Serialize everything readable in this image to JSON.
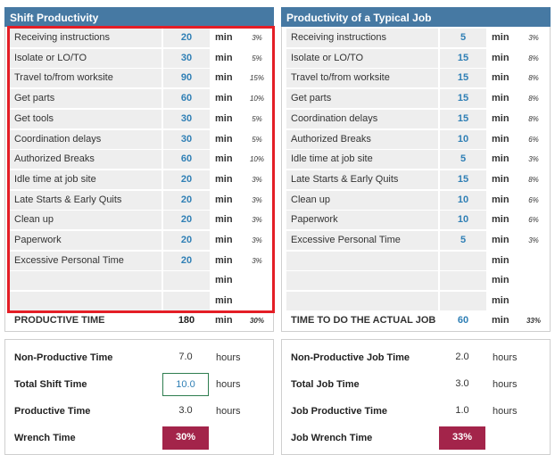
{
  "left_panel": {
    "title": "Shift Productivity",
    "rows": [
      {
        "label": "Receiving instructions",
        "value": "20",
        "unit": "min",
        "percent": "3%"
      },
      {
        "label": "Isolate or LO/TO",
        "value": "30",
        "unit": "min",
        "percent": "5%"
      },
      {
        "label": "Travel to/from worksite",
        "value": "90",
        "unit": "min",
        "percent": "15%"
      },
      {
        "label": "Get parts",
        "value": "60",
        "unit": "min",
        "percent": "10%"
      },
      {
        "label": "Get tools",
        "value": "30",
        "unit": "min",
        "percent": "5%"
      },
      {
        "label": "Coordination delays",
        "value": "30",
        "unit": "min",
        "percent": "5%"
      },
      {
        "label": "Authorized Breaks",
        "value": "60",
        "unit": "min",
        "percent": "10%"
      },
      {
        "label": "Idle time at job site",
        "value": "20",
        "unit": "min",
        "percent": "3%"
      },
      {
        "label": "Late Starts & Early Quits",
        "value": "20",
        "unit": "min",
        "percent": "3%"
      },
      {
        "label": "Clean up",
        "value": "20",
        "unit": "min",
        "percent": "3%"
      },
      {
        "label": "Paperwork",
        "value": "20",
        "unit": "min",
        "percent": "3%"
      },
      {
        "label": "Excessive Personal Time",
        "value": "20",
        "unit": "min",
        "percent": "3%"
      },
      {
        "unit": "min"
      },
      {
        "unit": "min"
      }
    ],
    "total": {
      "label": "PRODUCTIVE TIME",
      "value": "180",
      "unit": "min",
      "percent": "30%"
    }
  },
  "right_panel": {
    "title": "Productivity of a Typical Job",
    "rows": [
      {
        "label": "Receiving instructions",
        "value": "5",
        "unit": "min",
        "percent": "3%"
      },
      {
        "label": "Isolate or LO/TO",
        "value": "15",
        "unit": "min",
        "percent": "8%"
      },
      {
        "label": "Travel to/from worksite",
        "value": "15",
        "unit": "min",
        "percent": "8%"
      },
      {
        "label": "Get parts",
        "value": "15",
        "unit": "min",
        "percent": "8%"
      },
      {
        "label": "Coordination delays",
        "value": "15",
        "unit": "min",
        "percent": "8%"
      },
      {
        "label": "Authorized Breaks",
        "value": "10",
        "unit": "min",
        "percent": "6%"
      },
      {
        "label": "Idle time at job site",
        "value": "5",
        "unit": "min",
        "percent": "3%"
      },
      {
        "label": "Late Starts & Early Quits",
        "value": "15",
        "unit": "min",
        "percent": "8%"
      },
      {
        "label": "Clean up",
        "value": "10",
        "unit": "min",
        "percent": "6%"
      },
      {
        "label": "Paperwork",
        "value": "10",
        "unit": "min",
        "percent": "6%"
      },
      {
        "label": "Excessive Personal Time",
        "value": "5",
        "unit": "min",
        "percent": "3%"
      },
      {
        "unit": "min"
      },
      {
        "unit": "min"
      },
      {
        "unit": "min"
      }
    ],
    "total": {
      "label": "TIME TO DO THE ACTUAL JOB",
      "value": "60",
      "unit": "min",
      "percent": "33%"
    }
  },
  "left_summary": {
    "rows": [
      {
        "label": "Non-Productive Time",
        "value": "7.0",
        "unit": "hours"
      },
      {
        "label": "Total Shift Time",
        "value": "10.0",
        "unit": "hours"
      },
      {
        "label": "Productive Time",
        "value": "3.0",
        "unit": "hours"
      },
      {
        "label": "Wrench Time",
        "value": "30%"
      }
    ]
  },
  "right_summary": {
    "rows": [
      {
        "label": "Non-Productive Job Time",
        "value": "2.0",
        "unit": "hours"
      },
      {
        "label": "Total Job Time",
        "value": "3.0",
        "unit": "hours"
      },
      {
        "label": "Job Productive Time",
        "value": "1.0",
        "unit": "hours"
      },
      {
        "label": "Job Wrench Time",
        "value": "33%"
      }
    ]
  }
}
